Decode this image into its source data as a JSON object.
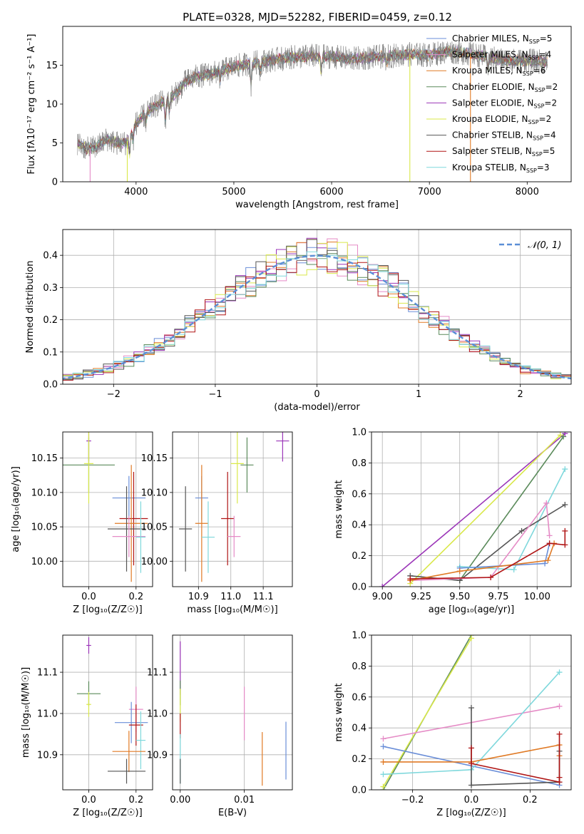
{
  "title": "PLATE=0328, MJD=52282, FIBERID=0459, z=0.12",
  "colors": {
    "chabrier_miles": "#6a8ed8",
    "salpeter_miles": "#e58bc6",
    "kroupa_miles": "#e07a25",
    "chabrier_elodie": "#5a8a5a",
    "salpeter_elodie": "#9b35b8",
    "kroupa_elodie": "#d9e84a",
    "chabrier_stelib": "#555555",
    "salpeter_stelib": "#b01515",
    "kroupa_stelib": "#7fd8dc",
    "normal": "#5b8fd6",
    "spec_data": "#777777"
  },
  "legend_spectrum": [
    {
      "key": "chabrier_miles",
      "text": "Chabrier MILES, N",
      "sub": "SSP",
      "tail": "=5"
    },
    {
      "key": "salpeter_miles",
      "text": "Salpeter MILES, N",
      "sub": "SSP",
      "tail": "=4"
    },
    {
      "key": "kroupa_miles",
      "text": "Kroupa MILES, N",
      "sub": "SSP",
      "tail": "=6"
    },
    {
      "key": "chabrier_elodie",
      "text": "Chabrier ELODIE, N",
      "sub": "SSP",
      "tail": "=2"
    },
    {
      "key": "salpeter_elodie",
      "text": "Salpeter ELODIE, N",
      "sub": "SSP",
      "tail": "=2"
    },
    {
      "key": "kroupa_elodie",
      "text": "Kroupa ELODIE, N",
      "sub": "SSP",
      "tail": "=2"
    },
    {
      "key": "chabrier_stelib",
      "text": "Chabrier STELIB, N",
      "sub": "SSP",
      "tail": "=4"
    },
    {
      "key": "salpeter_stelib",
      "text": "Salpeter STELIB, N",
      "sub": "SSP",
      "tail": "=5"
    },
    {
      "key": "kroupa_stelib",
      "text": "Kroupa STELIB, N",
      "sub": "SSP",
      "tail": "=3"
    }
  ],
  "chart_data": [
    {
      "id": "spectrum",
      "type": "line",
      "xlabel": "wavelength [Angstrom, rest frame]",
      "ylabel": "Flux [fλ10⁻¹⁷ erg cm⁻² s⁻¹ A⁻¹]",
      "xlim": [
        3250,
        8450
      ],
      "ylim": [
        0,
        20
      ],
      "xticks": [
        4000,
        5000,
        6000,
        7000,
        8000
      ],
      "yticks": [
        0,
        5,
        10,
        15
      ],
      "grid": false,
      "continuum": [
        [
          3400,
          5.0
        ],
        [
          3500,
          4.2
        ],
        [
          3600,
          4.5
        ],
        [
          3700,
          5.5
        ],
        [
          3800,
          5.0
        ],
        [
          3900,
          5.0
        ],
        [
          4000,
          7.5
        ],
        [
          4100,
          8.8
        ],
        [
          4200,
          9.8
        ],
        [
          4300,
          10.5
        ],
        [
          4400,
          11.2
        ],
        [
          4500,
          12.8
        ],
        [
          4600,
          13.5
        ],
        [
          4800,
          14.0
        ],
        [
          5000,
          14.8
        ],
        [
          5200,
          15.3
        ],
        [
          5400,
          15.7
        ],
        [
          5600,
          16.0
        ],
        [
          5800,
          16.2
        ],
        [
          6000,
          16.1
        ],
        [
          6200,
          15.8
        ],
        [
          6400,
          16.0
        ],
        [
          6600,
          16.2
        ],
        [
          6800,
          16.4
        ],
        [
          7000,
          16.3
        ],
        [
          7200,
          16.8
        ],
        [
          7400,
          16.5
        ],
        [
          7600,
          16.0
        ],
        [
          7800,
          15.6
        ],
        [
          8000,
          15.6
        ],
        [
          8200,
          15.4
        ]
      ],
      "absorption_lines": [
        [
          3934,
          2.2
        ],
        [
          3969,
          1.6
        ],
        [
          4101,
          1.2
        ],
        [
          4300,
          3.0
        ],
        [
          4340,
          1.5
        ],
        [
          4861,
          1.2
        ],
        [
          5175,
          2.8
        ],
        [
          5270,
          1.2
        ],
        [
          5893,
          2.2
        ],
        [
          6563,
          1.0
        ],
        [
          7600,
          1.5
        ]
      ],
      "spikes": [
        {
          "x": 3530,
          "model": "salpeter_miles"
        },
        {
          "x": 3910,
          "model": "kroupa_elodie"
        },
        {
          "x": 6800,
          "model": "kroupa_elodie"
        },
        {
          "x": 7420,
          "model": "kroupa_miles"
        }
      ],
      "legend_loc": "upper right"
    },
    {
      "id": "residual_hist",
      "type": "histogram",
      "xlabel": "(data-model)/error",
      "ylabel": "Normed distribution",
      "xlim": [
        -2.5,
        2.5
      ],
      "ylim": [
        0,
        0.48
      ],
      "xticks": [
        -2,
        -1,
        0,
        1,
        2
      ],
      "yticks": [
        0.0,
        0.1,
        0.2,
        0.3,
        0.4
      ],
      "bin_width": 0.1,
      "grid": true,
      "reference": {
        "label": "𝒩(0, 1)",
        "mean": 0,
        "sigma": 1
      },
      "legend_loc": "upper right"
    },
    {
      "id": "age_vs_Z",
      "type": "errorbar",
      "xlabel": "Z [log₁₀(Z/Z☉)]",
      "ylabel": "age  [log₁₀(age/yr)]",
      "xlim": [
        -0.11,
        0.27
      ],
      "ylim": [
        9.963,
        10.188
      ],
      "xticks": [
        0.0,
        0.2
      ],
      "yticks": [
        10.0,
        10.05,
        10.1,
        10.15
      ],
      "points": [
        {
          "key": "salpeter_elodie",
          "x": 0.0,
          "y": 10.175,
          "xe": 0.01,
          "ye": 0.03
        },
        {
          "key": "chabrier_elodie",
          "x": 0.0,
          "y": 10.14,
          "xe": 0.11,
          "ye": 0.04
        },
        {
          "key": "kroupa_elodie",
          "x": 0.0,
          "y": 10.142,
          "xe": 0.02,
          "ye": 0.058
        },
        {
          "key": "chabrier_miles",
          "x": 0.17,
          "y": 10.092,
          "xe": 0.07,
          "ye": 0.032
        },
        {
          "key": "salpeter_stelib",
          "x": 0.19,
          "y": 10.062,
          "xe": 0.06,
          "ye": 0.068
        },
        {
          "key": "kroupa_miles",
          "x": 0.18,
          "y": 10.055,
          "xe": 0.07,
          "ye": 0.085
        },
        {
          "key": "chabrier_stelib",
          "x": 0.16,
          "y": 10.047,
          "xe": 0.08,
          "ye": 0.062
        },
        {
          "key": "salpeter_miles",
          "x": 0.17,
          "y": 10.036,
          "xe": 0.07,
          "ye": 0.03
        },
        {
          "key": "kroupa_stelib",
          "x": 0.22,
          "y": 10.035,
          "xe": 0.02,
          "ye": 0.052
        }
      ]
    },
    {
      "id": "age_vs_mass",
      "type": "errorbar",
      "xlabel": "mass [log₁₀(M/M☉)]",
      "ylabel": "",
      "xlim": [
        10.82,
        11.19
      ],
      "ylim": [
        9.963,
        10.188
      ],
      "xticks": [
        10.9,
        11.0,
        11.1
      ],
      "yticks": [
        10.0,
        10.05,
        10.1,
        10.15
      ],
      "points": [
        {
          "key": "salpeter_elodie",
          "x": 11.16,
          "y": 10.175,
          "xe": 0.02,
          "ye": 0.03
        },
        {
          "key": "chabrier_elodie",
          "x": 11.05,
          "y": 10.14,
          "xe": 0.02,
          "ye": 0.04
        },
        {
          "key": "kroupa_elodie",
          "x": 11.02,
          "y": 10.142,
          "xe": 0.02,
          "ye": 0.058
        },
        {
          "key": "chabrier_miles",
          "x": 10.91,
          "y": 10.092,
          "xe": 0.02,
          "ye": 0.032
        },
        {
          "key": "salpeter_stelib",
          "x": 10.99,
          "y": 10.062,
          "xe": 0.02,
          "ye": 0.068
        },
        {
          "key": "kroupa_miles",
          "x": 10.91,
          "y": 10.055,
          "xe": 0.02,
          "ye": 0.085
        },
        {
          "key": "chabrier_stelib",
          "x": 10.86,
          "y": 10.047,
          "xe": 0.02,
          "ye": 0.062
        },
        {
          "key": "salpeter_miles",
          "x": 11.01,
          "y": 10.036,
          "xe": 0.02,
          "ye": 0.03
        },
        {
          "key": "kroupa_stelib",
          "x": 10.93,
          "y": 10.035,
          "xe": 0.02,
          "ye": 0.052
        }
      ]
    },
    {
      "id": "mass_weight_vs_age",
      "type": "line",
      "xlabel": "age  [log₁₀(age/yr)]",
      "ylabel": "mass weight",
      "xlim": [
        8.93,
        10.22
      ],
      "ylim": [
        0,
        1
      ],
      "xticks": [
        9.0,
        9.25,
        9.5,
        9.75,
        10.0
      ],
      "yticks": [
        0.0,
        0.2,
        0.4,
        0.6,
        0.8,
        1.0
      ],
      "grid": true,
      "series": [
        {
          "key": "salpeter_elodie",
          "x": [
            9.0,
            10.18
          ],
          "y": [
            0.0,
            0.99
          ]
        },
        {
          "key": "kroupa_elodie",
          "x": [
            9.18,
            10.15
          ],
          "y": [
            0.02,
            0.98
          ]
        },
        {
          "key": "chabrier_elodie",
          "x": [
            9.5,
            10.17
          ],
          "y": [
            0.04,
            0.97
          ]
        },
        {
          "key": "kroupa_stelib",
          "x": [
            9.5,
            9.85,
            10.18
          ],
          "y": [
            0.13,
            0.11,
            0.76
          ]
        },
        {
          "key": "chabrier_stelib",
          "x": [
            9.18,
            9.5,
            9.9,
            10.18
          ],
          "y": [
            0.07,
            0.04,
            0.36,
            0.53
          ]
        },
        {
          "key": "salpeter_miles",
          "x": [
            9.18,
            9.7,
            10.06,
            10.08
          ],
          "y": [
            0.04,
            0.06,
            0.54,
            0.33
          ]
        },
        {
          "key": "chabrier_miles",
          "x": [
            9.5,
            10.05,
            10.08
          ],
          "y": [
            0.12,
            0.15,
            0.28
          ]
        },
        {
          "key": "kroupa_miles",
          "x": [
            9.18,
            9.5,
            10.07,
            10.11
          ],
          "y": [
            0.04,
            0.1,
            0.17,
            0.28
          ]
        },
        {
          "key": "salpeter_stelib",
          "x": [
            9.18,
            9.7,
            10.08,
            10.18,
            10.18
          ],
          "y": [
            0.05,
            0.06,
            0.28,
            0.27,
            0.36
          ]
        }
      ]
    },
    {
      "id": "mass_vs_Z",
      "type": "errorbar",
      "xlabel": "Z [log₁₀(Z/Z☉)]",
      "ylabel": "mass [log₁₀(M/M☉)]",
      "xlim": [
        -0.11,
        0.27
      ],
      "ylim": [
        10.815,
        11.19
      ],
      "xticks": [
        0.0,
        0.2
      ],
      "yticks": [
        10.9,
        11.0,
        11.1
      ],
      "points": [
        {
          "key": "salpeter_elodie",
          "x": 0.0,
          "y": 11.165,
          "xe": 0.01,
          "ye": 0.02
        },
        {
          "key": "chabrier_elodie",
          "x": 0.0,
          "y": 11.048,
          "xe": 0.05,
          "ye": 0.03
        },
        {
          "key": "kroupa_elodie",
          "x": 0.0,
          "y": 11.022,
          "xe": 0.01,
          "ye": 0.03
        },
        {
          "key": "salpeter_miles",
          "x": 0.2,
          "y": 11.01,
          "xe": 0.03,
          "ye": 0.055
        },
        {
          "key": "chabrier_miles",
          "x": 0.18,
          "y": 10.978,
          "xe": 0.07,
          "ye": 0.05
        },
        {
          "key": "salpeter_stelib",
          "x": 0.2,
          "y": 10.972,
          "xe": 0.03,
          "ye": 0.05
        },
        {
          "key": "kroupa_stelib",
          "x": 0.22,
          "y": 10.935,
          "xe": 0.02,
          "ye": 0.07
        },
        {
          "key": "kroupa_miles",
          "x": 0.17,
          "y": 10.908,
          "xe": 0.07,
          "ye": 0.05
        },
        {
          "key": "chabrier_stelib",
          "x": 0.16,
          "y": 10.86,
          "xe": 0.08,
          "ye": 0.03
        }
      ]
    },
    {
      "id": "mass_vs_ebv",
      "type": "errorbar",
      "xlabel": "E(B-V)",
      "ylabel": "",
      "xlim": [
        -0.0012,
        0.0175
      ],
      "ylim": [
        10.815,
        11.19
      ],
      "xticks": [
        0.0,
        0.01
      ],
      "yticks": [
        10.9,
        11.0,
        11.1
      ],
      "points": [
        {
          "key": "salpeter_elodie",
          "x": 0.0,
          "y": 11.11,
          "xe": 0,
          "ye": 0.065
        },
        {
          "key": "chabrier_elodie",
          "x": 0.0,
          "y": 11.05,
          "xe": 0,
          "ye": 0.03
        },
        {
          "key": "kroupa_elodie",
          "x": 0.0,
          "y": 11.02,
          "xe": 0,
          "ye": 0.04
        },
        {
          "key": "salpeter_stelib",
          "x": 0.0,
          "y": 10.97,
          "xe": 0,
          "ye": 0.03
        },
        {
          "key": "kroupa_stelib",
          "x": 0.0,
          "y": 10.89,
          "xe": 0,
          "ye": 0.06
        },
        {
          "key": "chabrier_stelib",
          "x": 0.0,
          "y": 10.86,
          "xe": 0,
          "ye": 0.03
        },
        {
          "key": "salpeter_miles",
          "x": 0.01,
          "y": 11.0,
          "xe": 0,
          "ye": 0.065
        },
        {
          "key": "kroupa_miles",
          "x": 0.0128,
          "y": 10.89,
          "xe": 0,
          "ye": 0.065
        },
        {
          "key": "chabrier_miles",
          "x": 0.0165,
          "y": 10.91,
          "xe": 0,
          "ye": 0.07
        }
      ]
    },
    {
      "id": "mass_weight_vs_Z",
      "type": "line",
      "xlabel": "Z [log₁₀(Z/Z☉)]",
      "ylabel": "mass weight",
      "xlim": [
        -0.34,
        0.34
      ],
      "ylim": [
        0,
        1
      ],
      "xticks": [
        -0.2,
        0.0,
        0.2
      ],
      "yticks": [
        0.0,
        0.2,
        0.4,
        0.6,
        0.8,
        1.0
      ],
      "grid": true,
      "series": [
        {
          "key": "chabrier_elodie",
          "x": [
            -0.3,
            0.0
          ],
          "y": [
            0.0,
            1.0
          ]
        },
        {
          "key": "kroupa_elodie",
          "x": [
            -0.3,
            0.0
          ],
          "y": [
            0.02,
            0.98
          ]
        },
        {
          "key": "salpeter_miles",
          "x": [
            -0.3,
            0.3
          ],
          "y": [
            0.33,
            0.54
          ]
        },
        {
          "key": "chabrier_miles",
          "x": [
            -0.3,
            0.3
          ],
          "y": [
            0.28,
            0.03
          ]
        },
        {
          "key": "kroupa_stelib",
          "x": [
            -0.3,
            0.0,
            0.3
          ],
          "y": [
            0.1,
            0.13,
            0.76
          ]
        },
        {
          "key": "kroupa_miles",
          "x": [
            -0.3,
            0.0,
            0.3,
            0.3
          ],
          "y": [
            0.18,
            0.18,
            0.29,
            0.22
          ]
        },
        {
          "key": "chabrier_stelib",
          "x": [
            0.0,
            0.0,
            0.3,
            0.3
          ],
          "y": [
            0.53,
            0.03,
            0.05,
            0.25
          ]
        },
        {
          "key": "salpeter_stelib",
          "x": [
            0.0,
            0.0,
            0.3,
            0.3,
            0.3
          ],
          "y": [
            0.27,
            0.17,
            0.05,
            0.08,
            0.36
          ]
        }
      ]
    }
  ]
}
